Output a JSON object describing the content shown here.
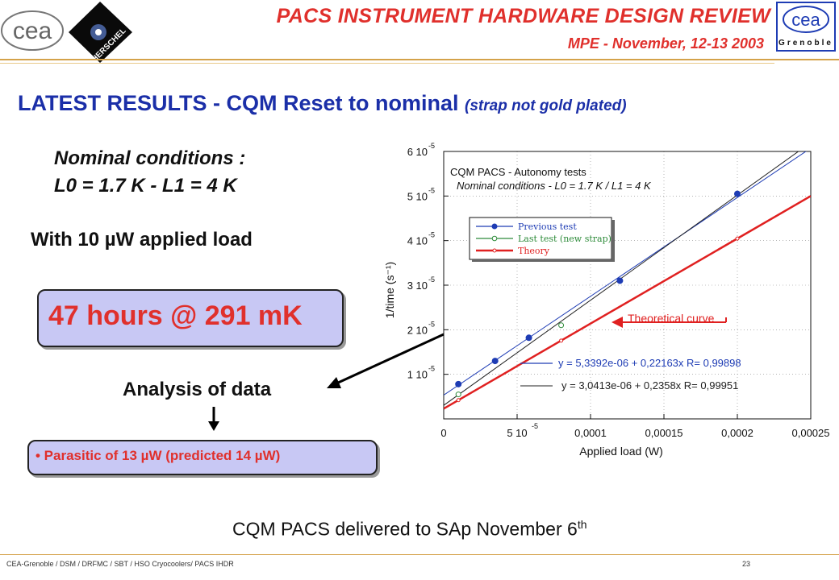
{
  "header": {
    "title": "PACS INSTRUMENT HARDWARE DESIGN REVIEW",
    "subtitle": "MPE - November, 12-13 2003",
    "logo_left_text": "cea",
    "logo_herschel_text": "HERSCHEL",
    "logo_right_text": "cea",
    "logo_right_sub": "Grenoble"
  },
  "slide": {
    "title": "LATEST RESULTS - CQM Reset to nominal",
    "title_note": "(strap not gold plated)",
    "nominal_line1": "Nominal conditions :",
    "nominal_line2": "L0 = 1.7 K - L1 = 4 K",
    "load_text": "With 10 µW applied load",
    "hours_text": "47 hours @ 291 mK",
    "analysis_text": "Analysis of data",
    "parasitic_text": "• Parasitic of 13 µW (predicted 14 µW)",
    "delivered_text": "CQM PACS delivered to SAp November 6",
    "delivered_sup": "th"
  },
  "footer": {
    "left": "CEA-Grenoble / DSM / DRFMC / SBT / HSO Cryocoolers/ PACS IHDR",
    "page": "23"
  },
  "chart_data": {
    "type": "scatter",
    "title_line1": "CQM PACS -  Autonomy tests",
    "title_line2": "Nominal conditions - L0 = 1.7 K / L1 = 4 K",
    "xlabel": "Applied load (W)",
    "ylabel": "1/time (s⁻¹)",
    "xlim": [
      0,
      0.00025
    ],
    "ylim": [
      0,
      6e-05
    ],
    "x_ticks": [
      0,
      5e-05,
      0.0001,
      0.00015,
      0.0002,
      0.00025
    ],
    "x_tick_labels": [
      "0",
      "5 10",
      "0,0001",
      "0,00015",
      "0,0002",
      "0,00025"
    ],
    "x_tick_exp": [
      "",
      "-5",
      "",
      "",
      "",
      ""
    ],
    "y_ticks": [
      1e-05,
      2e-05,
      3e-05,
      4e-05,
      5e-05,
      6e-05
    ],
    "y_tick_labels": [
      "1 10",
      "2 10",
      "3 10",
      "4 10",
      "5 10",
      "6 10"
    ],
    "y_tick_exp": "-5",
    "series": [
      {
        "name": "Previous test",
        "color": "#1e3cb4",
        "marker": "filled-circle",
        "x": [
          1e-05,
          3.5e-05,
          5.8e-05,
          0.00012,
          0.0002
        ],
        "y": [
          7.8e-06,
          1.3e-05,
          1.82e-05,
          3.1e-05,
          5.05e-05
        ]
      },
      {
        "name": "Last test (new strap)",
        "color": "#2e8b3a",
        "marker": "open-circle",
        "x": [
          1e-05,
          8e-05
        ],
        "y": [
          5.5e-06,
          2.1e-05
        ]
      },
      {
        "name": "Theory",
        "color": "#e02020",
        "marker": "line",
        "x": [
          0,
          0.00025
        ],
        "y": [
          2.3e-06,
          5e-05
        ]
      }
    ],
    "fits": [
      {
        "label": "y = 5,3392e-06 + 0,22163x   R= 0,99898",
        "color": "#1e3cb4",
        "intercept": 5.3392e-06,
        "slope": 0.22163
      },
      {
        "label": "y = 3,0413e-06 + 0,2358x   R= 0,99951",
        "color": "#222222",
        "intercept": 3.0413e-06,
        "slope": 0.2358
      }
    ],
    "annotation": "Theoretical curve"
  }
}
